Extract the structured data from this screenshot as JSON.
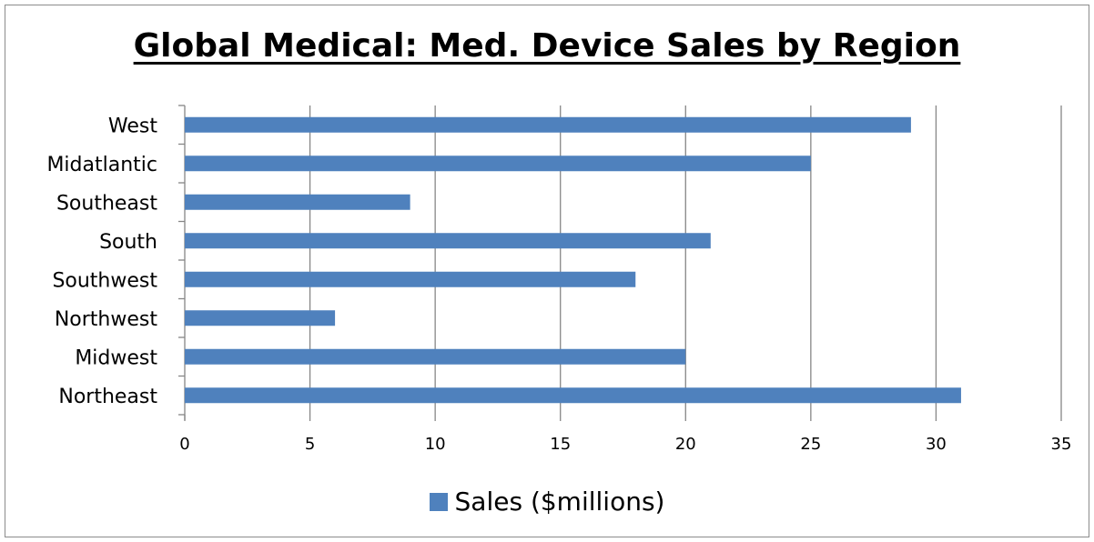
{
  "chart_data": {
    "type": "bar",
    "orientation": "horizontal",
    "title": "Global Medical: Med. Device Sales by Region",
    "categories": [
      "West",
      "Midatlantic",
      "Southeast",
      "South",
      "Southwest",
      "Northwest",
      "Midwest",
      "Northeast"
    ],
    "series": [
      {
        "name": "Sales ($millions)",
        "values": [
          29,
          25,
          9,
          21,
          18,
          6,
          20,
          31
        ],
        "color": "#4f81bd"
      }
    ],
    "xlim": [
      0,
      35
    ],
    "xticks": [
      0,
      5,
      10,
      15,
      20,
      25,
      30,
      35
    ],
    "xlabel": "",
    "ylabel": "",
    "grid": "vertical",
    "legend_position": "bottom"
  }
}
